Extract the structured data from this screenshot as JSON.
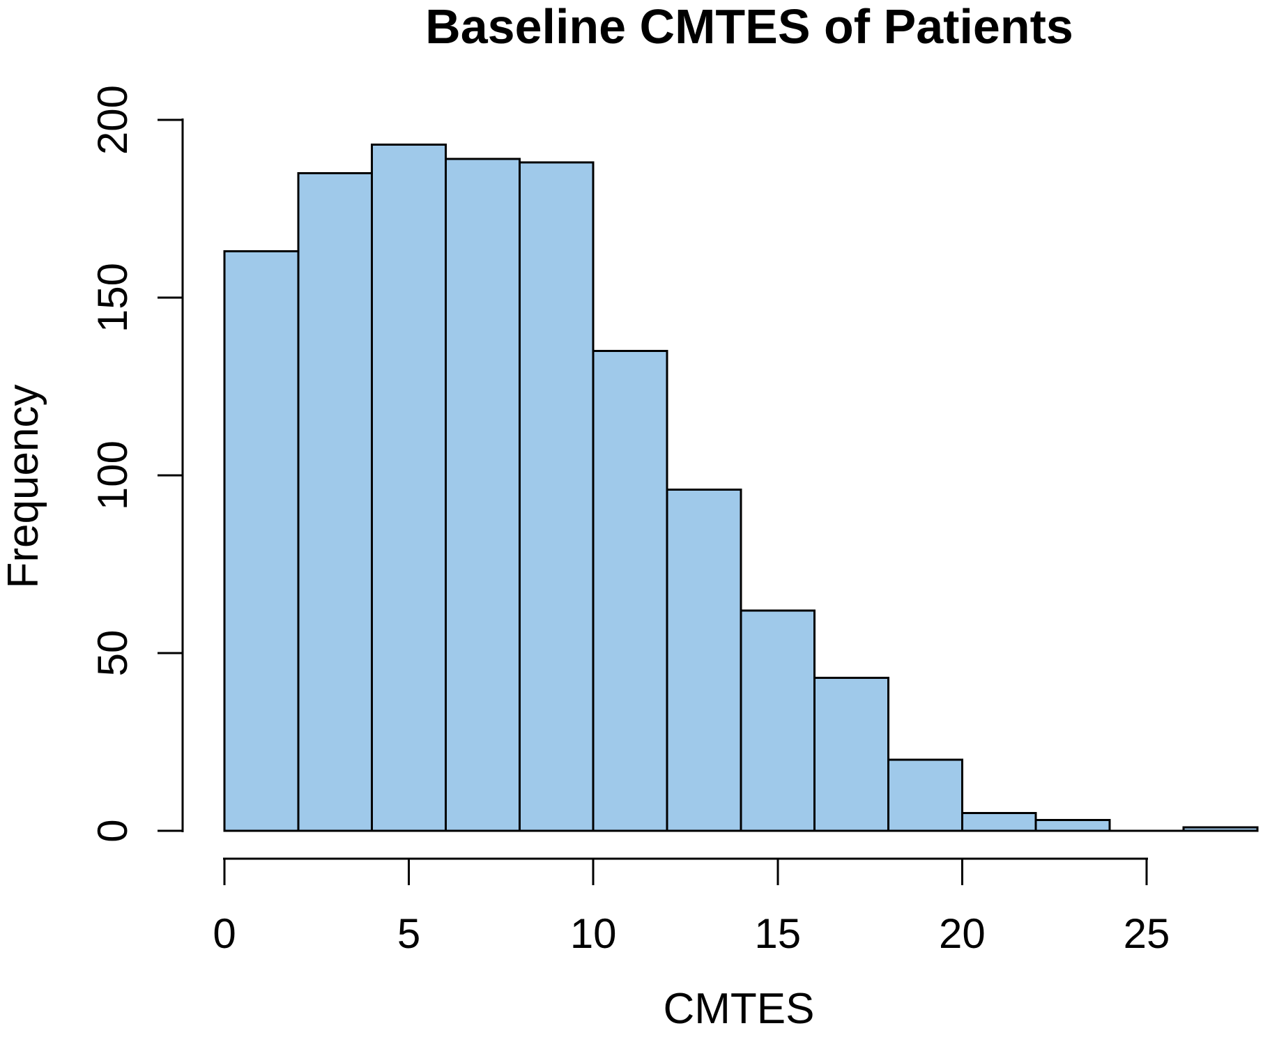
{
  "chart_data": {
    "type": "histogram",
    "title": "Baseline CMTES of Patients",
    "xlabel": "CMTES",
    "ylabel": "Frequency",
    "bin_width": 2,
    "bins": [
      {
        "start": 0,
        "end": 2,
        "count": 163
      },
      {
        "start": 2,
        "end": 4,
        "count": 185
      },
      {
        "start": 4,
        "end": 6,
        "count": 193
      },
      {
        "start": 6,
        "end": 8,
        "count": 189
      },
      {
        "start": 8,
        "end": 10,
        "count": 188
      },
      {
        "start": 10,
        "end": 12,
        "count": 135
      },
      {
        "start": 12,
        "end": 14,
        "count": 96
      },
      {
        "start": 14,
        "end": 16,
        "count": 62
      },
      {
        "start": 16,
        "end": 18,
        "count": 43
      },
      {
        "start": 18,
        "end": 20,
        "count": 20
      },
      {
        "start": 20,
        "end": 22,
        "count": 5
      },
      {
        "start": 22,
        "end": 24,
        "count": 3
      },
      {
        "start": 24,
        "end": 26,
        "count": 0
      },
      {
        "start": 26,
        "end": 28,
        "count": 1
      }
    ],
    "x_ticks": [
      0,
      5,
      10,
      15,
      20,
      25
    ],
    "y_ticks": [
      0,
      50,
      100,
      150,
      200
    ],
    "xlim": [
      0,
      28
    ],
    "ylim": [
      0,
      200
    ],
    "grid": false,
    "legend": "none",
    "bar_fill": "#9FC9EA",
    "bar_border": "#000000",
    "axis_color": "#000000"
  }
}
